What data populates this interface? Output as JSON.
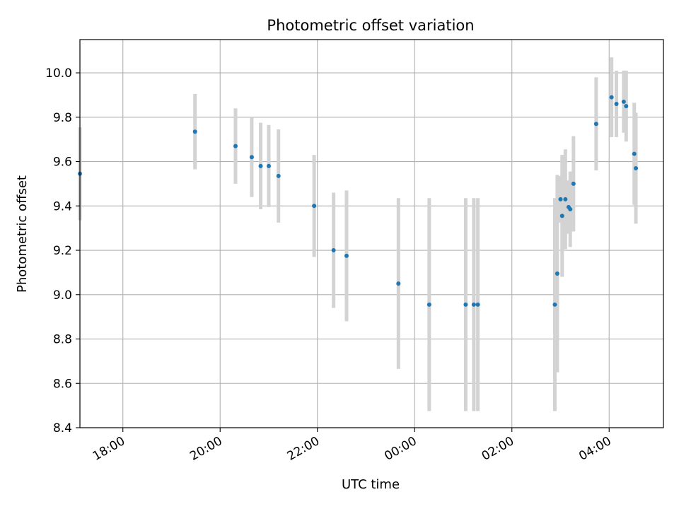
{
  "chart_data": {
    "type": "scatter",
    "title": "Photometric offset variation",
    "xlabel": "UTC time",
    "ylabel": "Photometric offset",
    "x_axis": "time (day 0 = first date, day 1 = following date)",
    "xlim": [
      "17:07",
      "05:07 (+1 day)"
    ],
    "ylim": [
      8.4,
      10.15
    ],
    "x_ticks": [
      "18:00",
      "20:00",
      "22:00",
      "00:00",
      "02:00",
      "04:00"
    ],
    "y_ticks": [
      "8.4",
      "8.6",
      "8.8",
      "9.0",
      "9.2",
      "9.4",
      "9.6",
      "9.8",
      "10.0"
    ],
    "grid": true,
    "colors": {
      "marker": "#1f77b4",
      "errorbar": "#d3d3d3",
      "grid": "#b0b0b0"
    },
    "points": [
      {
        "t": "17:07",
        "y": 9.545,
        "err": 0.21
      },
      {
        "t": "19:29",
        "y": 9.735,
        "err": 0.17
      },
      {
        "t": "20:19",
        "y": 9.67,
        "err": 0.17
      },
      {
        "t": "20:39",
        "y": 9.62,
        "err": 0.18
      },
      {
        "t": "20:50",
        "y": 9.58,
        "err": 0.195
      },
      {
        "t": "21:00",
        "y": 9.58,
        "err": 0.185
      },
      {
        "t": "21:12",
        "y": 9.535,
        "err": 0.21
      },
      {
        "t": "21:56",
        "y": 9.4,
        "err": 0.23
      },
      {
        "t": "22:20",
        "y": 9.2,
        "err": 0.26
      },
      {
        "t": "22:36",
        "y": 9.175,
        "err": 0.295
      },
      {
        "t": "23:40",
        "y": 9.05,
        "err": 0.385
      },
      {
        "t": "00:18",
        "y": 8.955,
        "err": 0.48
      },
      {
        "t": "01:03",
        "y": 8.955,
        "err": 0.48
      },
      {
        "t": "01:13",
        "y": 8.955,
        "err": 0.48
      },
      {
        "t": "01:18",
        "y": 8.955,
        "err": 0.48
      },
      {
        "t": "02:53",
        "y": 8.955,
        "err": 0.48
      },
      {
        "t": "02:56",
        "y": 9.095,
        "err": 0.445
      },
      {
        "t": "03:00",
        "y": 9.43,
        "err": 0.105
      },
      {
        "t": "03:02",
        "y": 9.355,
        "err": 0.275
      },
      {
        "t": "03:06",
        "y": 9.43,
        "err": 0.225
      },
      {
        "t": "03:10",
        "y": 9.395,
        "err": 0.12
      },
      {
        "t": "03:12",
        "y": 9.385,
        "err": 0.17
      },
      {
        "t": "03:16",
        "y": 9.5,
        "err": 0.215
      },
      {
        "t": "03:44",
        "y": 9.77,
        "err": 0.21
      },
      {
        "t": "04:03",
        "y": 9.89,
        "err": 0.18
      },
      {
        "t": "04:09",
        "y": 9.86,
        "err": 0.15
      },
      {
        "t": "04:18",
        "y": 9.87,
        "err": 0.14
      },
      {
        "t": "04:21",
        "y": 9.85,
        "err": 0.16
      },
      {
        "t": "04:31",
        "y": 9.635,
        "err": 0.23
      },
      {
        "t": "04:33",
        "y": 9.57,
        "err": 0.25
      }
    ]
  }
}
